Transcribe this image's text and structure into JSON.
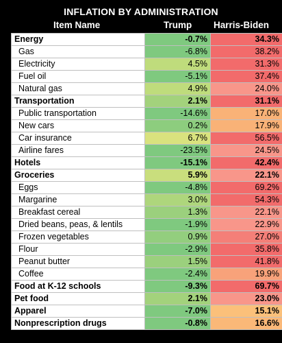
{
  "title": "INFLATION BY ADMINISTRATION",
  "columns": {
    "item": "Item Name",
    "trump": "Trump",
    "hb": "Harris-Biden"
  },
  "colors": {
    "green": "#7fc97f",
    "lightgreen": "#b5d97a",
    "yellowgreen": "#d9e27e",
    "orange": "#f7a86a",
    "red": "#f26b6b",
    "salmon": "#f8968a"
  },
  "rows": [
    {
      "name": "Energy",
      "bold": true,
      "trump": "-0.7%",
      "hb": "34.3%",
      "tcol": "#7fc97f",
      "hcol": "#f26b6b"
    },
    {
      "name": "Gas",
      "bold": false,
      "trump": "-6.8%",
      "hb": "38.2%",
      "tcol": "#7fc97f",
      "hcol": "#f26b6b"
    },
    {
      "name": "Electricity",
      "bold": false,
      "trump": "4.5%",
      "hb": "31.3%",
      "tcol": "#bfdc7c",
      "hcol": "#f26b6b"
    },
    {
      "name": "Fuel oil",
      "bold": false,
      "trump": "-5.1%",
      "hb": "37.4%",
      "tcol": "#7fc97f",
      "hcol": "#f26b6b"
    },
    {
      "name": "Natural gas",
      "bold": false,
      "trump": "4.9%",
      "hb": "24.0%",
      "tcol": "#bfdc7c",
      "hcol": "#f8968a"
    },
    {
      "name": "Transportation",
      "bold": true,
      "trump": "2.1%",
      "hb": "31.1%",
      "tcol": "#a3d27c",
      "hcol": "#f26b6b"
    },
    {
      "name": "Public transportation",
      "bold": false,
      "trump": "-14.6%",
      "hb": "17.0%",
      "tcol": "#7fc97f",
      "hcol": "#f9b277"
    },
    {
      "name": "New cars",
      "bold": false,
      "trump": "0.2%",
      "hb": "17.9%",
      "tcol": "#8dcd7e",
      "hcol": "#f9b277"
    },
    {
      "name": "Car insurance",
      "bold": false,
      "trump": "6.7%",
      "hb": "56.5%",
      "tcol": "#d9e27e",
      "hcol": "#f26b6b"
    },
    {
      "name": "Airline fares",
      "bold": false,
      "trump": "-23.5%",
      "hb": "24.5%",
      "tcol": "#7fc97f",
      "hcol": "#f8968a"
    },
    {
      "name": "Hotels",
      "bold": true,
      "trump": "-15.1%",
      "hb": "42.4%",
      "tcol": "#7fc97f",
      "hcol": "#f26b6b"
    },
    {
      "name": "Groceries",
      "bold": true,
      "trump": "5.9%",
      "hb": "22.1%",
      "tcol": "#c9de7d",
      "hcol": "#f8968a"
    },
    {
      "name": "Eggs",
      "bold": false,
      "trump": "-4.8%",
      "hb": "69.2%",
      "tcol": "#7fc97f",
      "hcol": "#f26b6b"
    },
    {
      "name": "Margarine",
      "bold": false,
      "trump": "3.0%",
      "hb": "54.3%",
      "tcol": "#aed67c",
      "hcol": "#f26b6b"
    },
    {
      "name": "Breakfast cereal",
      "bold": false,
      "trump": "1.3%",
      "hb": "22.1%",
      "tcol": "#9bd07d",
      "hcol": "#f8968a"
    },
    {
      "name": "Dried beans, peas, & lentils",
      "bold": false,
      "trump": "-1.9%",
      "hb": "22.9%",
      "tcol": "#7fc97f",
      "hcol": "#f8968a"
    },
    {
      "name": "Frozen vegetables",
      "bold": false,
      "trump": "0.9%",
      "hb": "27.0%",
      "tcol": "#93ce7e",
      "hcol": "#f47f78"
    },
    {
      "name": "Flour",
      "bold": false,
      "trump": "-2.9%",
      "hb": "35.8%",
      "tcol": "#7fc97f",
      "hcol": "#f26b6b"
    },
    {
      "name": "Peanut butter",
      "bold": false,
      "trump": "1.5%",
      "hb": "41.8%",
      "tcol": "#9bd07d",
      "hcol": "#f26b6b"
    },
    {
      "name": "Coffee",
      "bold": false,
      "trump": "-2.4%",
      "hb": "19.9%",
      "tcol": "#7fc97f",
      "hcol": "#f8a27a"
    },
    {
      "name": "Food at K-12 schools",
      "bold": true,
      "trump": "-9.3%",
      "hb": "69.7%",
      "tcol": "#7fc97f",
      "hcol": "#f26b6b"
    },
    {
      "name": "Pet food",
      "bold": true,
      "trump": "2.1%",
      "hb": "23.0%",
      "tcol": "#a3d27c",
      "hcol": "#f8968a"
    },
    {
      "name": "Apparel",
      "bold": true,
      "trump": "-7.0%",
      "hb": "15.1%",
      "tcol": "#7fc97f",
      "hcol": "#fbc07a"
    },
    {
      "name": "Nonprescription drugs",
      "bold": true,
      "trump": "-0.8%",
      "hb": "16.6%",
      "tcol": "#7fc97f",
      "hcol": "#fab878"
    }
  ]
}
